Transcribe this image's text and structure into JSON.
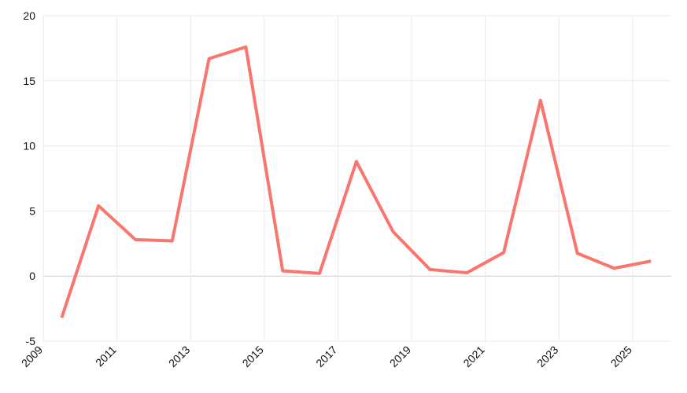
{
  "chart_data": {
    "type": "line",
    "x": [
      2009.5,
      2010.5,
      2011.5,
      2012.5,
      2013.5,
      2014.5,
      2015.5,
      2016.5,
      2017.5,
      2018.5,
      2019.5,
      2020.5,
      2021.5,
      2022.5,
      2023.5,
      2024.5,
      2025.5
    ],
    "series": [
      {
        "color": "#f8766d",
        "values": [
          -3.2,
          5.4,
          2.8,
          2.7,
          16.7,
          17.6,
          0.4,
          0.2,
          8.8,
          3.4,
          0.5,
          0.25,
          1.8,
          13.5,
          1.75,
          0.6,
          1.15
        ]
      }
    ],
    "xlim": [
      2009,
      2026.05
    ],
    "xticks": [
      2009,
      2011,
      2013,
      2015,
      2017,
      2019,
      2021,
      2023,
      2025
    ],
    "ylim": [
      -5,
      20
    ],
    "yticks": [
      -5,
      0,
      5,
      10,
      15,
      20
    ],
    "grid": true
  }
}
